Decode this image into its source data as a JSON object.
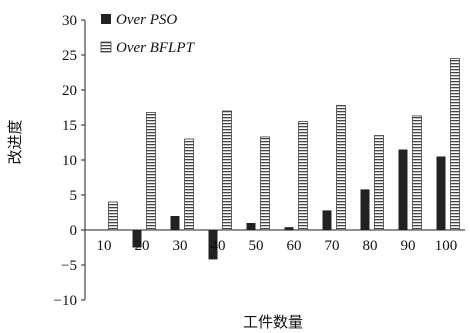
{
  "chart_data": {
    "type": "bar",
    "categories": [
      "10",
      "20",
      "30",
      "40",
      "50",
      "60",
      "70",
      "80",
      "90",
      "100"
    ],
    "series": [
      {
        "name": "Over PSO",
        "values": [
          0,
          -2.5,
          2.0,
          -4.2,
          1.0,
          0.4,
          2.8,
          5.8,
          11.5,
          10.5
        ],
        "color": "#222222",
        "pattern": "solid"
      },
      {
        "name": "Over BFLPT",
        "values": [
          4.0,
          16.8,
          13.0,
          17.0,
          13.3,
          15.5,
          17.8,
          13.5,
          16.3,
          24.5
        ],
        "color": "#444444",
        "pattern": "horizontal-stripes"
      }
    ],
    "xlabel": "工件数量",
    "ylabel": "改进度",
    "ylim": [
      -10,
      30
    ],
    "yticks": [
      -10,
      -5,
      0,
      5,
      10,
      15,
      20,
      25,
      30
    ],
    "legend_position": "top-left",
    "grid": false
  }
}
